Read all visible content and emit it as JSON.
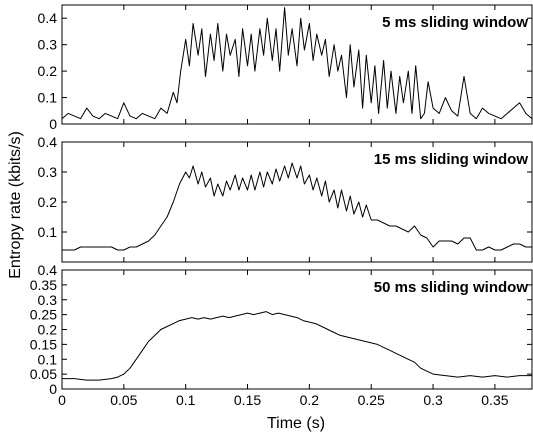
{
  "chart_data": {
    "type": "line",
    "ylabel": "Entropy rate (kbits/s)",
    "xlabel": "Time (s)",
    "xlim": [
      0,
      0.38
    ],
    "x_ticks": [
      "0",
      "0.05",
      "0.1",
      "0.15",
      "0.2",
      "0.25",
      "0.3",
      "0.35"
    ],
    "grid": false,
    "panels": [
      {
        "title": "5 ms sliding window",
        "ylim": [
          0,
          0.45
        ],
        "y_ticks": [
          "0",
          "0.1",
          "0.2",
          "0.3",
          "0.4"
        ],
        "series": [
          {
            "x": [
              0,
              0.005,
              0.01,
              0.015,
              0.02,
              0.025,
              0.03,
              0.035,
              0.04,
              0.045,
              0.05,
              0.055,
              0.06,
              0.065,
              0.07,
              0.075,
              0.08,
              0.085,
              0.09,
              0.093,
              0.096,
              0.1,
              0.103,
              0.106,
              0.11,
              0.113,
              0.116,
              0.12,
              0.123,
              0.126,
              0.13,
              0.133,
              0.136,
              0.14,
              0.143,
              0.146,
              0.15,
              0.153,
              0.156,
              0.16,
              0.163,
              0.166,
              0.17,
              0.173,
              0.176,
              0.18,
              0.183,
              0.186,
              0.19,
              0.193,
              0.196,
              0.2,
              0.203,
              0.206,
              0.21,
              0.213,
              0.216,
              0.22,
              0.223,
              0.226,
              0.23,
              0.233,
              0.236,
              0.24,
              0.243,
              0.246,
              0.25,
              0.253,
              0.256,
              0.26,
              0.263,
              0.266,
              0.27,
              0.273,
              0.276,
              0.28,
              0.283,
              0.286,
              0.29,
              0.293,
              0.296,
              0.3,
              0.305,
              0.31,
              0.315,
              0.32,
              0.325,
              0.33,
              0.335,
              0.34,
              0.345,
              0.35,
              0.355,
              0.36,
              0.365,
              0.37,
              0.375,
              0.38
            ],
            "y": [
              0.02,
              0.04,
              0.03,
              0.02,
              0.06,
              0.03,
              0.02,
              0.04,
              0.03,
              0.02,
              0.08,
              0.03,
              0.02,
              0.04,
              0.03,
              0.02,
              0.06,
              0.04,
              0.12,
              0.08,
              0.2,
              0.32,
              0.22,
              0.38,
              0.26,
              0.36,
              0.18,
              0.34,
              0.24,
              0.38,
              0.2,
              0.34,
              0.26,
              0.32,
              0.18,
              0.36,
              0.22,
              0.34,
              0.2,
              0.36,
              0.26,
              0.4,
              0.24,
              0.36,
              0.2,
              0.44,
              0.26,
              0.36,
              0.22,
              0.4,
              0.28,
              0.38,
              0.24,
              0.34,
              0.26,
              0.32,
              0.18,
              0.3,
              0.2,
              0.26,
              0.1,
              0.3,
              0.14,
              0.28,
              0.06,
              0.26,
              0.08,
              0.22,
              0.04,
              0.24,
              0.06,
              0.2,
              0.04,
              0.18,
              0.08,
              0.2,
              0.04,
              0.22,
              0.02,
              0.04,
              0.16,
              0.06,
              0.04,
              0.1,
              0.05,
              0.03,
              0.18,
              0.04,
              0.02,
              0.06,
              0.04,
              0.03,
              0.02,
              0.04,
              0.06,
              0.08,
              0.04,
              0.02
            ]
          }
        ]
      },
      {
        "title": "15 ms sliding window",
        "ylim": [
          0,
          0.4
        ],
        "y_ticks": [
          "0.1",
          "0.2",
          "0.3",
          "0.4"
        ],
        "series": [
          {
            "x": [
              0,
              0.005,
              0.01,
              0.015,
              0.02,
              0.025,
              0.03,
              0.035,
              0.04,
              0.045,
              0.05,
              0.055,
              0.06,
              0.065,
              0.07,
              0.075,
              0.08,
              0.085,
              0.09,
              0.095,
              0.1,
              0.103,
              0.106,
              0.11,
              0.113,
              0.116,
              0.12,
              0.123,
              0.126,
              0.13,
              0.133,
              0.136,
              0.14,
              0.143,
              0.146,
              0.15,
              0.153,
              0.156,
              0.16,
              0.163,
              0.166,
              0.17,
              0.173,
              0.176,
              0.18,
              0.183,
              0.186,
              0.19,
              0.193,
              0.196,
              0.2,
              0.203,
              0.206,
              0.21,
              0.213,
              0.216,
              0.22,
              0.223,
              0.226,
              0.23,
              0.233,
              0.236,
              0.24,
              0.243,
              0.246,
              0.25,
              0.255,
              0.26,
              0.265,
              0.27,
              0.275,
              0.28,
              0.285,
              0.29,
              0.295,
              0.3,
              0.305,
              0.31,
              0.315,
              0.32,
              0.325,
              0.33,
              0.335,
              0.34,
              0.345,
              0.35,
              0.355,
              0.36,
              0.365,
              0.37,
              0.375,
              0.38
            ],
            "y": [
              0.04,
              0.04,
              0.04,
              0.05,
              0.05,
              0.05,
              0.05,
              0.05,
              0.05,
              0.04,
              0.04,
              0.05,
              0.05,
              0.06,
              0.07,
              0.09,
              0.12,
              0.15,
              0.2,
              0.26,
              0.3,
              0.28,
              0.32,
              0.26,
              0.3,
              0.25,
              0.28,
              0.22,
              0.26,
              0.22,
              0.27,
              0.24,
              0.29,
              0.24,
              0.28,
              0.24,
              0.29,
              0.24,
              0.3,
              0.25,
              0.3,
              0.26,
              0.31,
              0.27,
              0.32,
              0.28,
              0.33,
              0.28,
              0.32,
              0.26,
              0.29,
              0.24,
              0.28,
              0.22,
              0.27,
              0.2,
              0.24,
              0.18,
              0.24,
              0.17,
              0.22,
              0.16,
              0.2,
              0.15,
              0.19,
              0.14,
              0.14,
              0.13,
              0.12,
              0.12,
              0.11,
              0.1,
              0.12,
              0.09,
              0.08,
              0.05,
              0.07,
              0.07,
              0.07,
              0.06,
              0.08,
              0.08,
              0.04,
              0.04,
              0.05,
              0.04,
              0.04,
              0.05,
              0.06,
              0.06,
              0.05,
              0.05
            ]
          }
        ]
      },
      {
        "title": "50 ms sliding window",
        "ylim": [
          0,
          0.4
        ],
        "y_ticks": [
          "0",
          "0.05",
          "0.1",
          "0.15",
          "0.2",
          "0.25",
          "0.3",
          "0.35",
          "0.4"
        ],
        "series": [
          {
            "x": [
              0,
              0.01,
              0.02,
              0.03,
              0.04,
              0.045,
              0.05,
              0.055,
              0.06,
              0.065,
              0.07,
              0.075,
              0.08,
              0.085,
              0.09,
              0.095,
              0.1,
              0.105,
              0.11,
              0.115,
              0.12,
              0.125,
              0.13,
              0.135,
              0.14,
              0.145,
              0.15,
              0.155,
              0.16,
              0.165,
              0.17,
              0.175,
              0.18,
              0.185,
              0.19,
              0.195,
              0.2,
              0.205,
              0.21,
              0.215,
              0.22,
              0.225,
              0.23,
              0.235,
              0.24,
              0.245,
              0.25,
              0.255,
              0.26,
              0.265,
              0.27,
              0.275,
              0.28,
              0.285,
              0.29,
              0.3,
              0.31,
              0.32,
              0.33,
              0.34,
              0.35,
              0.36,
              0.37,
              0.38
            ],
            "y": [
              0.035,
              0.035,
              0.03,
              0.03,
              0.035,
              0.04,
              0.05,
              0.07,
              0.1,
              0.13,
              0.16,
              0.18,
              0.2,
              0.21,
              0.22,
              0.23,
              0.235,
              0.24,
              0.235,
              0.24,
              0.235,
              0.24,
              0.245,
              0.24,
              0.245,
              0.25,
              0.255,
              0.25,
              0.255,
              0.26,
              0.25,
              0.255,
              0.25,
              0.245,
              0.24,
              0.23,
              0.225,
              0.22,
              0.21,
              0.2,
              0.19,
              0.18,
              0.175,
              0.17,
              0.165,
              0.16,
              0.155,
              0.15,
              0.14,
              0.13,
              0.12,
              0.11,
              0.1,
              0.09,
              0.07,
              0.05,
              0.045,
              0.04,
              0.045,
              0.04,
              0.045,
              0.04,
              0.045,
              0.045
            ]
          }
        ]
      }
    ]
  }
}
